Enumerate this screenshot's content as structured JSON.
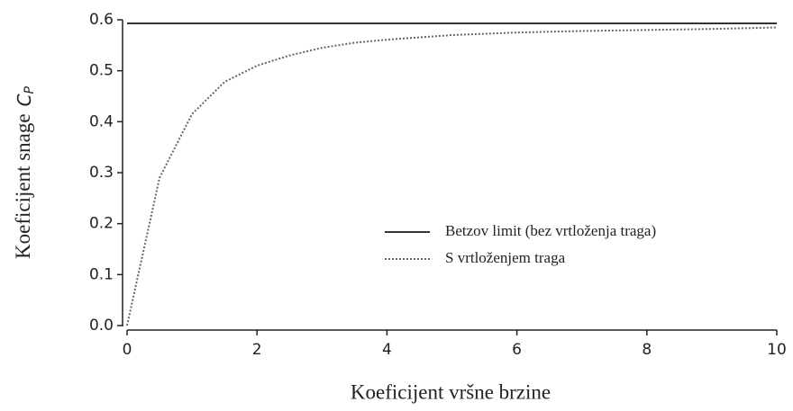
{
  "chart_data": {
    "type": "line",
    "xlabel": "Koeficijent vršne brzine",
    "ylabel": "Koeficijent snage",
    "ylabel_symbol": "C",
    "ylabel_subscript": "P",
    "x": [
      0,
      0.5,
      1,
      1.5,
      2,
      2.5,
      3,
      3.5,
      4,
      5,
      6,
      7,
      8,
      9,
      10
    ],
    "series": [
      {
        "name": "Betzov limit (bez vrtloženja traga)",
        "color": "#333333",
        "dash": "solid",
        "values": [
          0.593,
          0.593,
          0.593,
          0.593,
          0.593,
          0.593,
          0.593,
          0.593,
          0.593,
          0.593,
          0.593,
          0.593,
          0.593,
          0.593,
          0.593
        ]
      },
      {
        "name": "S vrtloženjem traga",
        "color": "#666666",
        "dash": "dotted",
        "values": [
          0,
          0.29,
          0.415,
          0.478,
          0.51,
          0.53,
          0.545,
          0.555,
          0.561,
          0.57,
          0.575,
          0.578,
          0.58,
          0.582,
          0.585
        ]
      }
    ],
    "xlim": [
      0,
      10
    ],
    "xticks": [
      0,
      2,
      4,
      6,
      8,
      10
    ],
    "ylim": [
      0,
      0.6
    ],
    "yticks": [
      {
        "value": 0,
        "label": "0.0"
      },
      0.1,
      0.2,
      0.3,
      0.4,
      0.5,
      0.6
    ],
    "grid": false,
    "legend": "lower right"
  }
}
